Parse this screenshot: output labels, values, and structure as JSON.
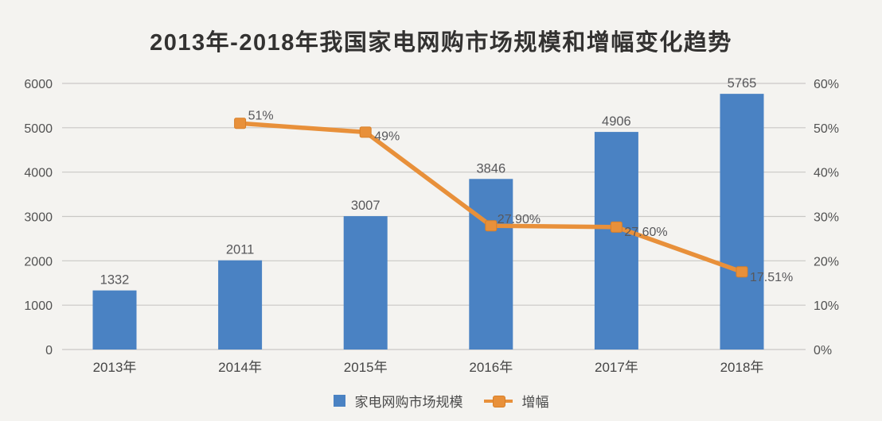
{
  "chart_data": {
    "type": "combo",
    "title": "2013年-2018年我国家电网购市场规模和增幅变化趋势",
    "categories": [
      "2013年",
      "2014年",
      "2015年",
      "2016年",
      "2017年",
      "2018年"
    ],
    "series": [
      {
        "name": "家电网购市场规模",
        "type": "bar",
        "axis": "left",
        "color": "#4a82c3",
        "values": [
          1332,
          2011,
          3007,
          3846,
          4906,
          5765
        ],
        "labels": [
          "1332",
          "2011",
          "3007",
          "3846",
          "4906",
          "5765"
        ]
      },
      {
        "name": "增幅",
        "type": "line",
        "axis": "right",
        "color": "#e8903a",
        "marker": "square",
        "values": [
          null,
          51,
          49,
          27.9,
          27.6,
          17.51
        ],
        "labels": [
          null,
          "51%",
          "49%",
          "27.90%",
          "27.60%",
          "17.51%"
        ],
        "label_offsets": [
          null,
          [
            10,
            -5
          ],
          [
            11,
            10
          ],
          [
            8,
            -3
          ],
          [
            10,
            11
          ],
          [
            10,
            12
          ]
        ]
      }
    ],
    "left_axis": {
      "min": 0,
      "max": 6000,
      "step": 1000,
      "ticks": [
        "0",
        "1000",
        "2000",
        "3000",
        "4000",
        "5000",
        "6000"
      ]
    },
    "right_axis": {
      "min": 0,
      "max": 60,
      "step": 10,
      "ticks": [
        "0%",
        "10%",
        "20%",
        "30%",
        "40%",
        "50%",
        "60%"
      ]
    },
    "grid": true,
    "legend_position": "bottom",
    "colors": {
      "background": "#f4f3f0",
      "grid": "#c9c8c5",
      "tick_text": "#525252",
      "data_label_text": "#58585b",
      "x_label_text": "#454545",
      "line_marker_border": "#d87f28"
    }
  }
}
